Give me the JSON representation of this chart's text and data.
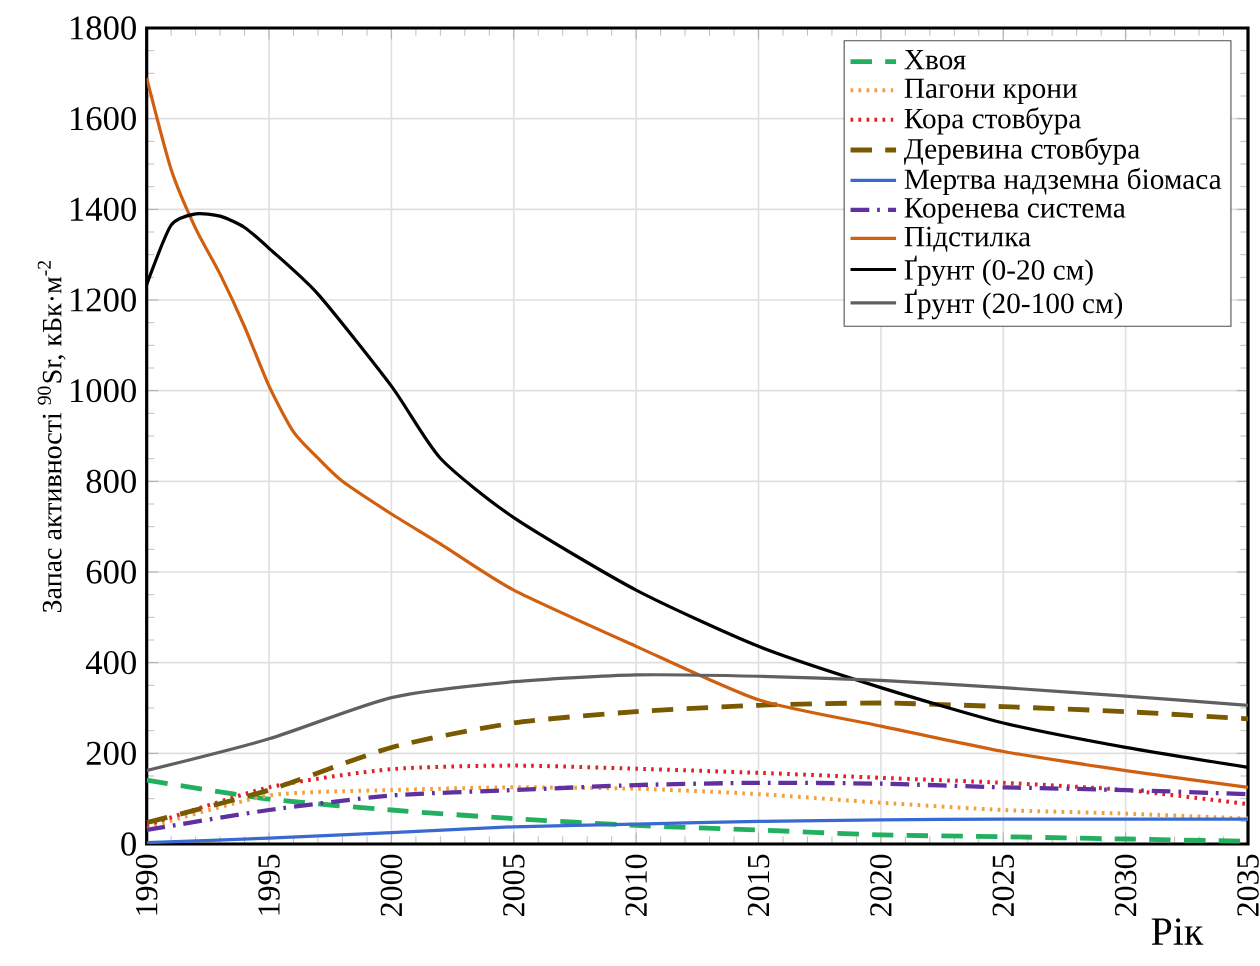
{
  "chart_data": {
    "type": "line",
    "xlabel": "Рік",
    "ylabel": "Запас активності $^{90}$Sr, кБк·м$^{-2}$",
    "xlim": [
      1990,
      2035
    ],
    "xticks": [
      1990,
      1995,
      2000,
      2005,
      2010,
      2015,
      2020,
      2025,
      2030,
      2035
    ],
    "ylim": [
      0,
      1800
    ],
    "yticks": [
      0,
      200,
      400,
      600,
      800,
      1000,
      1200,
      1400,
      1600,
      1800
    ],
    "grid": true,
    "legend": "top right",
    "x": [
      1990,
      1995,
      2000,
      2005,
      2010,
      2015,
      2020,
      2025,
      2030,
      2035
    ],
    "series": [
      {
        "name": "Хвоя",
        "color": "#22b060",
        "line_style": "dashed",
        "values": [
          141,
          99,
          75,
          56,
          41,
          31,
          20,
          16,
          11,
          6
        ]
      },
      {
        "name": "Пагони крони",
        "color": "#f0a040",
        "line_style": "dotted",
        "values": [
          36,
          107,
          119,
          125,
          122,
          110,
          91,
          75,
          67,
          56
        ]
      },
      {
        "name": "Кора стовбура",
        "color": "#e0202a",
        "line_style": "dotted",
        "values": [
          41,
          125,
          165,
          173,
          166,
          157,
          146,
          135,
          119,
          88
        ]
      },
      {
        "name": "Деревина стовбура",
        "color": "#7a5a00",
        "line_style": "dashed",
        "values": [
          47,
          119,
          213,
          267,
          292,
          306,
          311,
          303,
          292,
          276
        ]
      },
      {
        "name": "Мертва надземна біомаса",
        "color": "#3a6ad0",
        "line_style": "solid",
        "values": [
          3,
          13,
          25,
          38,
          44,
          50,
          53,
          55,
          55,
          55
        ]
      },
      {
        "name": "Коренева система",
        "color": "#6030a0",
        "line_style": "dashdot",
        "values": [
          31,
          75,
          107,
          119,
          130,
          135,
          133,
          125,
          119,
          110
        ]
      },
      {
        "name": "Підстилка",
        "color": "#d06010",
        "line_style": "solid",
        "x": [
          1990,
          1991,
          1992,
          1993,
          1994,
          1995,
          1996,
          1997,
          1998,
          2000,
          2002,
          2005,
          2010,
          2015,
          2020,
          2025,
          2030,
          2035
        ],
        "values": [
          1690,
          1488,
          1358,
          1257,
          1141,
          1010,
          909,
          851,
          800,
          728,
          662,
          560,
          436,
          318,
          260,
          204,
          162,
          125
        ]
      },
      {
        "name": "Ґрунт (0-20 см)",
        "color": "#000000",
        "line_style": "solid",
        "x": [
          1990,
          1991,
          1992,
          1993,
          1994,
          1995,
          1997,
          2000,
          2002,
          2005,
          2010,
          2015,
          2020,
          2025,
          2030,
          2035
        ],
        "values": [
          1234,
          1365,
          1390,
          1385,
          1360,
          1314,
          1213,
          1010,
          851,
          720,
          560,
          436,
          345,
          267,
          213,
          169
        ]
      },
      {
        "name": "Ґрунт (20-100 см)",
        "color": "#606060",
        "line_style": "solid",
        "values": [
          162,
          232,
          323,
          358,
          373,
          370,
          361,
          345,
          326,
          306
        ]
      }
    ]
  }
}
